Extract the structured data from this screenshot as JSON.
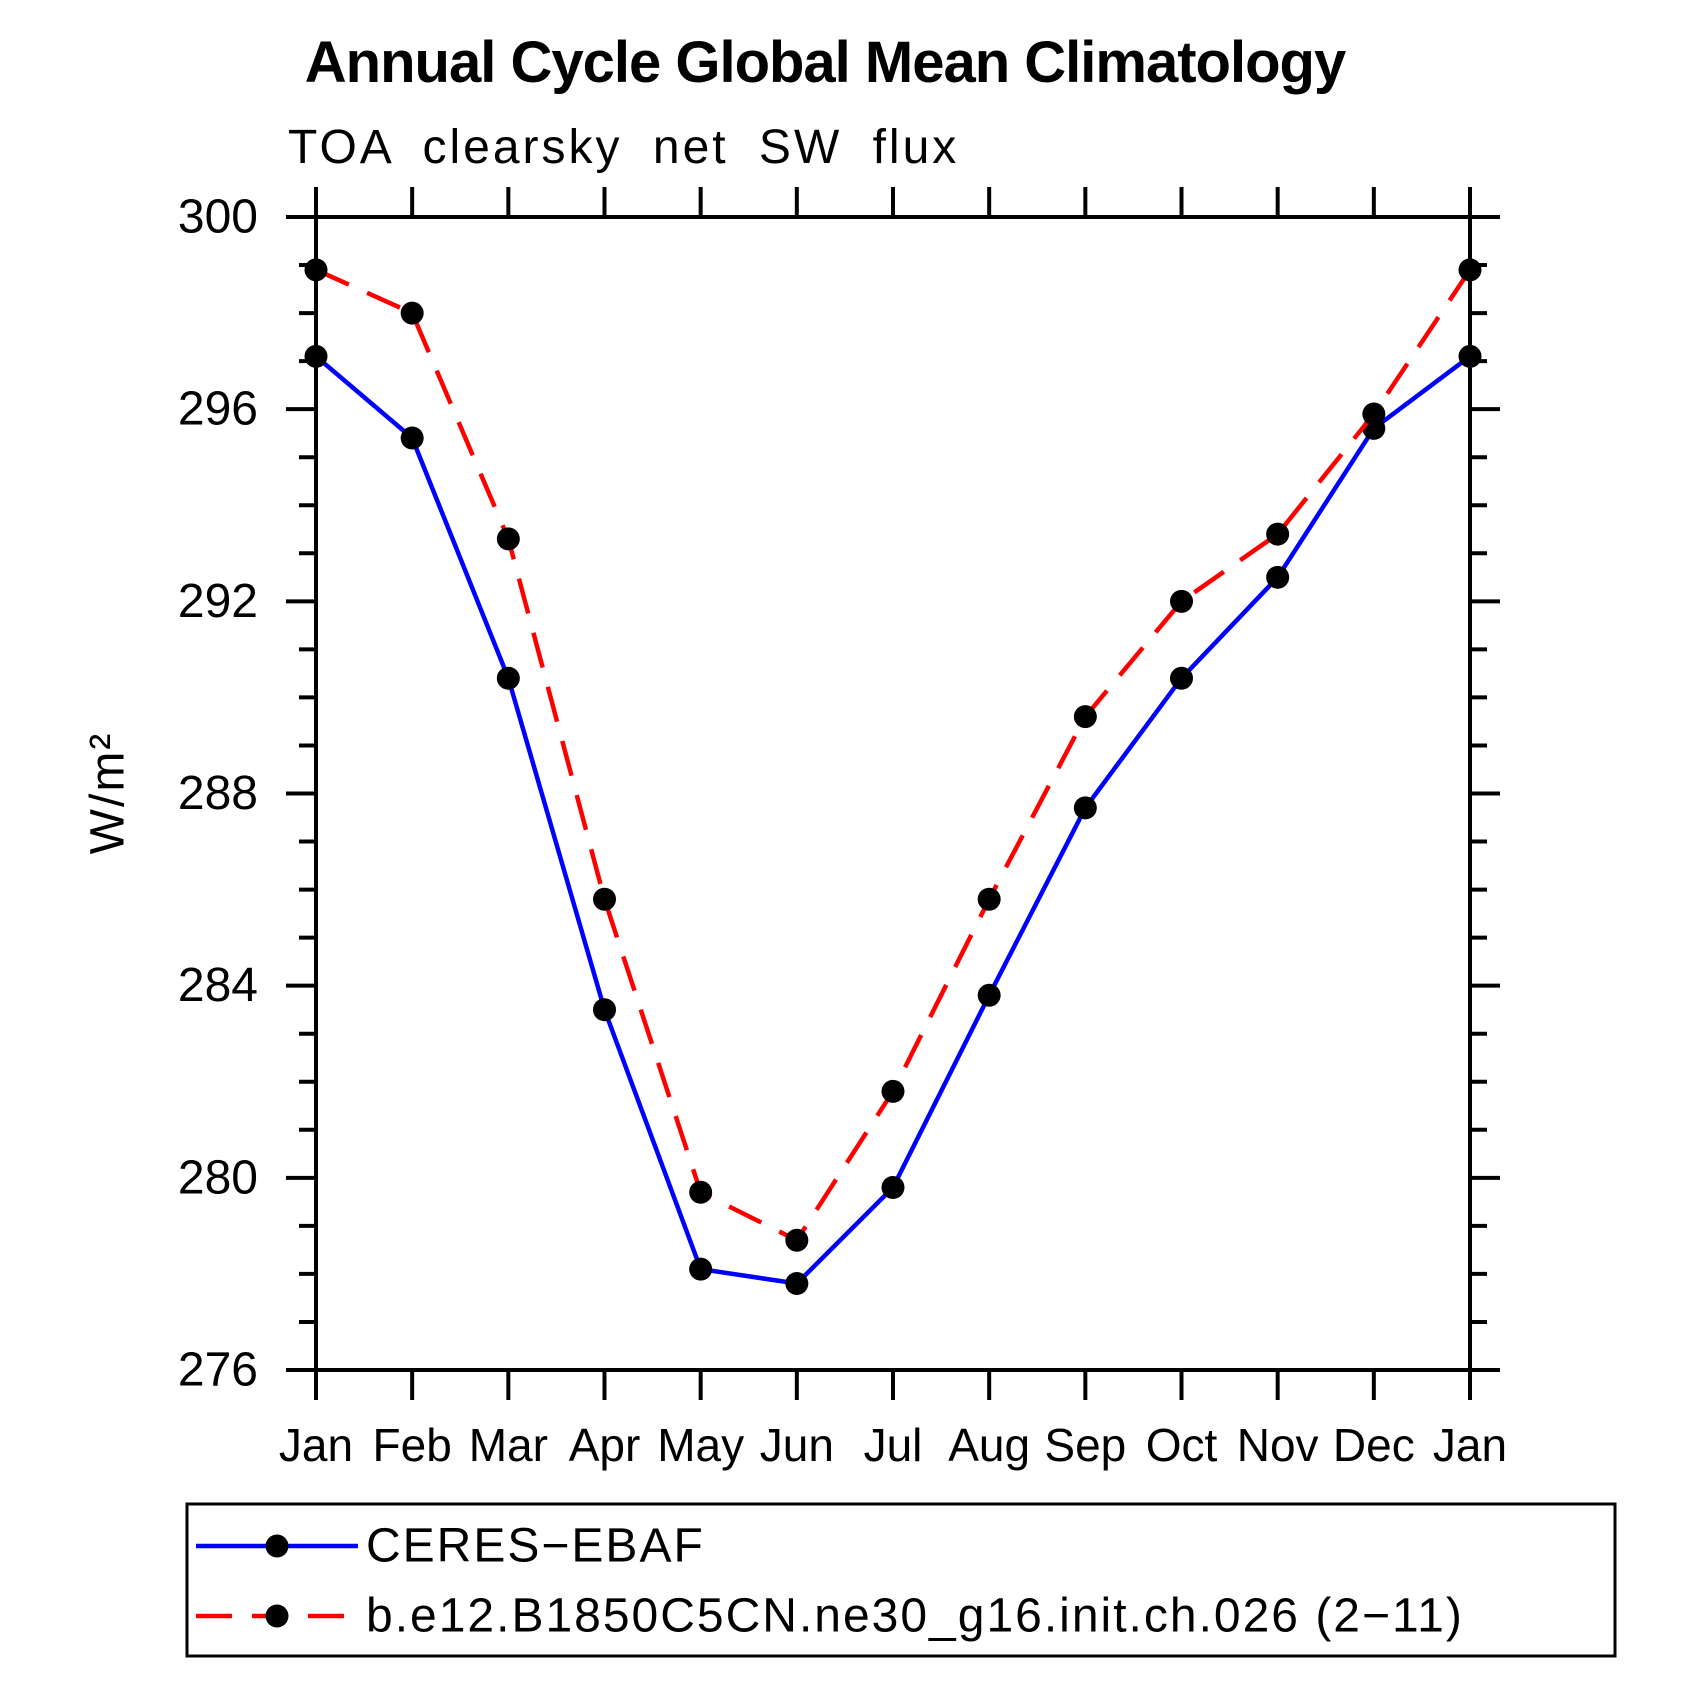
{
  "chart_data": {
    "type": "line",
    "title": "Annual Cycle Global Mean Climatology",
    "subtitle": "TOA clearsky net SW flux",
    "ylabel": "W/m²",
    "categories": [
      "Jan",
      "Feb",
      "Mar",
      "Apr",
      "May",
      "Jun",
      "Jul",
      "Aug",
      "Sep",
      "Oct",
      "Nov",
      "Dec",
      "Jan"
    ],
    "ylim": [
      276,
      300
    ],
    "y_major_ticks": [
      276,
      280,
      284,
      288,
      292,
      296,
      300
    ],
    "y_minor_step": 1,
    "grid": false,
    "legend_position": "below-left-boxed",
    "series": [
      {
        "name": "CERES−EBAF",
        "color": "#0000ff",
        "line_style": "solid",
        "marker": "filled-circle",
        "marker_color": "#000000",
        "values": [
          297.1,
          295.4,
          290.4,
          283.5,
          278.1,
          277.8,
          279.8,
          283.8,
          287.7,
          290.4,
          292.5,
          295.6,
          297.1
        ]
      },
      {
        "name": "b.e12.B1850C5CN.ne30_g16.init.ch.026 (2−11)",
        "color": "#ff0000",
        "line_style": "dashed",
        "marker": "filled-circle",
        "marker_color": "#000000",
        "values": [
          298.9,
          298.0,
          293.3,
          285.8,
          279.7,
          278.7,
          281.8,
          285.8,
          289.6,
          292.0,
          293.4,
          295.9,
          298.9
        ]
      }
    ]
  },
  "colors": {
    "axis": "#000000",
    "background": "#ffffff",
    "series_ceres": "#0000ff",
    "series_model": "#ff0000",
    "marker": "#000000"
  }
}
